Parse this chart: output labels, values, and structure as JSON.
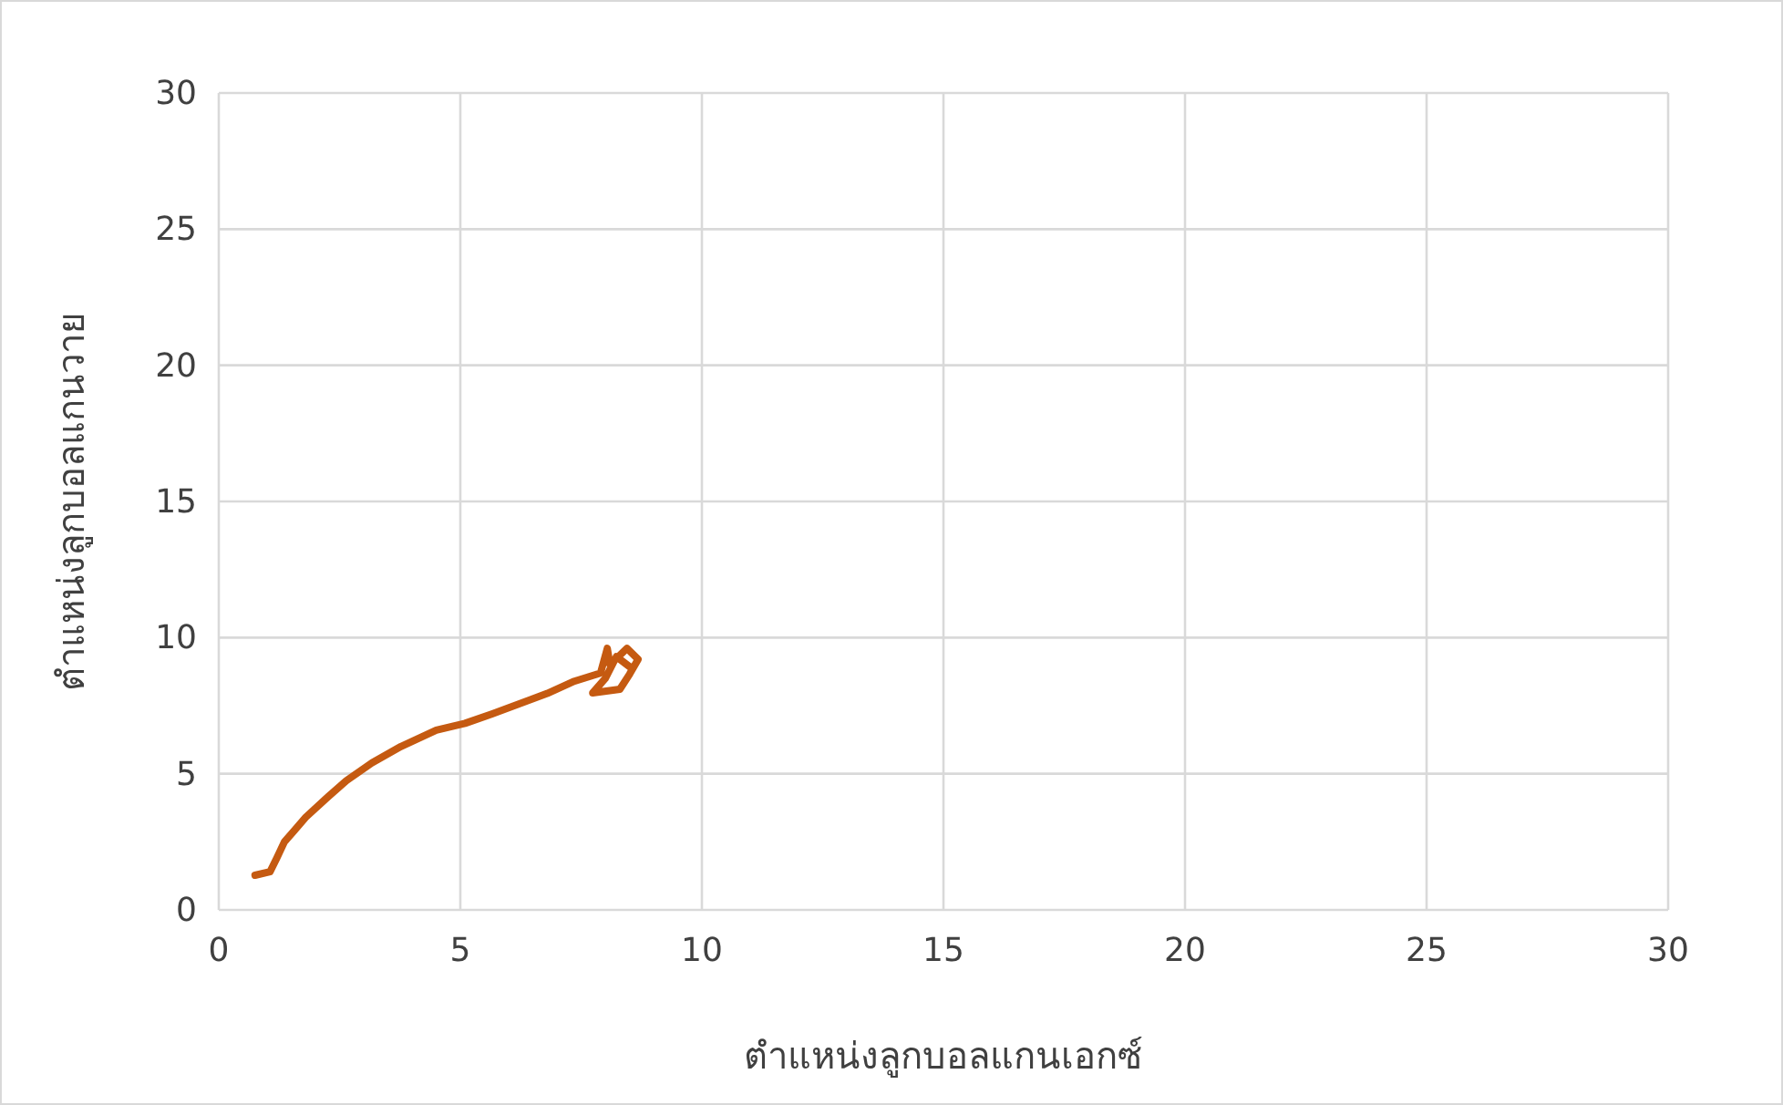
{
  "chart_data": {
    "type": "line",
    "xlabel": "ตำแหน่งลูกบอลแกนเอกซ์",
    "ylabel": "ตำแหน่งลูกบอลแกนวาย",
    "xlim": [
      0,
      30
    ],
    "ylim": [
      0,
      30
    ],
    "xticks": [
      0,
      5,
      10,
      15,
      20,
      25,
      30
    ],
    "yticks": [
      0,
      5,
      10,
      15,
      20,
      25,
      30
    ],
    "grid": true,
    "marker": "none",
    "line_style": "solid",
    "series": [
      {
        "color": "#c55a11",
        "x": [
          0.75,
          1.06,
          1.2,
          1.36,
          1.58,
          1.8,
          2.26,
          2.64,
          3.17,
          3.77,
          4.5,
          5.1,
          5.66,
          6.8,
          7.36,
          7.9,
          8.04,
          8.1,
          8.45,
          8.68,
          8.5,
          8.3,
          7.74,
          8.0,
          8.23,
          8.53
        ],
        "values": [
          1.27,
          1.4,
          1.9,
          2.5,
          2.95,
          3.4,
          4.15,
          4.75,
          5.4,
          6.0,
          6.6,
          6.85,
          7.2,
          7.95,
          8.4,
          8.7,
          9.6,
          9.0,
          9.6,
          9.2,
          8.65,
          8.1,
          7.97,
          8.5,
          9.3,
          8.9
        ]
      }
    ]
  }
}
